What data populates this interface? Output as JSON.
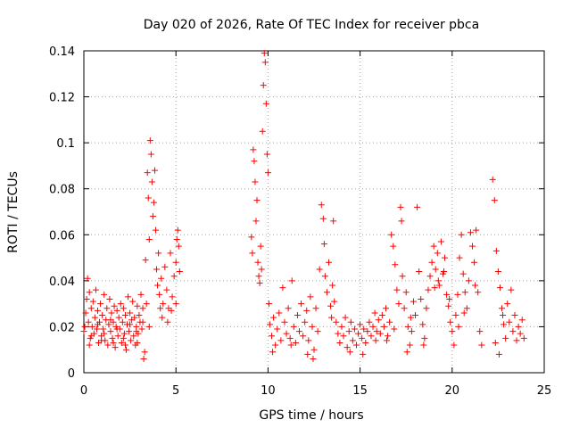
{
  "chart_data": {
    "type": "scatter",
    "title": "Day 020 of 2026, Rate Of TEC Index for receiver pbca",
    "xlabel": "GPS time / hours",
    "ylabel": "ROTI / TECUs",
    "xlim": [
      0,
      25
    ],
    "ylim": [
      0,
      0.14
    ],
    "x_ticks": [
      "0",
      "5",
      "10",
      "15",
      "20",
      "25"
    ],
    "y_ticks": [
      "0",
      "0.02",
      "0.04",
      "0.06",
      "0.08",
      "0.1",
      "0.12",
      "0.14"
    ],
    "x_tick_values": [
      0,
      5,
      10,
      15,
      20,
      25
    ],
    "y_tick_values": [
      0,
      0.02,
      0.04,
      0.06,
      0.08,
      0.1,
      0.12,
      0.14
    ],
    "grid": true,
    "marker": "plus",
    "point_color": "#ff0000",
    "series": [
      {
        "points": [
          [
            0.0,
            0.018
          ],
          [
            0.1,
            0.026
          ],
          [
            0.15,
            0.032
          ],
          [
            0.2,
            0.041
          ],
          [
            0.25,
            0.022
          ],
          [
            0.3,
            0.035
          ],
          [
            0.35,
            0.015
          ],
          [
            0.4,
            0.028
          ],
          [
            0.45,
            0.02
          ],
          [
            0.5,
            0.031
          ],
          [
            0.55,
            0.017
          ],
          [
            0.6,
            0.024
          ],
          [
            0.65,
            0.036
          ],
          [
            0.7,
            0.019
          ],
          [
            0.75,
            0.027
          ],
          [
            0.8,
            0.013
          ],
          [
            0.85,
            0.022
          ],
          [
            0.9,
            0.03
          ],
          [
            0.95,
            0.016
          ],
          [
            1.0,
            0.025
          ],
          [
            1.05,
            0.019
          ],
          [
            1.1,
            0.034
          ],
          [
            1.15,
            0.014
          ],
          [
            1.2,
            0.023
          ],
          [
            1.25,
            0.028
          ],
          [
            1.3,
            0.012
          ],
          [
            1.35,
            0.021
          ],
          [
            1.4,
            0.032
          ],
          [
            1.45,
            0.018
          ],
          [
            1.5,
            0.026
          ],
          [
            1.55,
            0.015
          ],
          [
            1.6,
            0.022
          ],
          [
            1.65,
            0.029
          ],
          [
            1.7,
            0.011
          ],
          [
            1.75,
            0.02
          ],
          [
            1.8,
            0.027
          ],
          [
            1.85,
            0.016
          ],
          [
            1.9,
            0.024
          ],
          [
            1.95,
            0.019
          ],
          [
            2.0,
            0.03
          ],
          [
            2.05,
            0.013
          ],
          [
            2.1,
            0.022
          ],
          [
            2.15,
            0.028
          ],
          [
            2.2,
            0.017
          ],
          [
            2.25,
            0.025
          ],
          [
            2.3,
            0.01
          ],
          [
            2.35,
            0.021
          ],
          [
            2.4,
            0.033
          ],
          [
            2.45,
            0.018
          ],
          [
            2.5,
            0.026
          ],
          [
            2.55,
            0.014
          ],
          [
            2.6,
            0.023
          ],
          [
            2.65,
            0.031
          ],
          [
            2.7,
            0.016
          ],
          [
            2.75,
            0.024
          ],
          [
            2.8,
            0.012
          ],
          [
            2.85,
            0.02
          ],
          [
            2.9,
            0.029
          ],
          [
            2.95,
            0.017
          ],
          [
            3.0,
            0.025
          ],
          [
            3.05,
            0.022
          ],
          [
            3.1,
            0.034
          ],
          [
            3.15,
            0.019
          ],
          [
            3.2,
            0.028
          ],
          [
            3.25,
            0.006
          ],
          [
            3.3,
            0.009
          ],
          [
            3.35,
            0.049
          ],
          [
            3.4,
            0.03
          ],
          [
            3.45,
            0.087
          ],
          [
            3.5,
            0.076
          ],
          [
            3.55,
            0.058
          ],
          [
            3.6,
            0.101
          ],
          [
            3.65,
            0.095
          ],
          [
            3.7,
            0.083
          ],
          [
            3.75,
            0.068
          ],
          [
            3.8,
            0.074
          ],
          [
            3.85,
            0.088
          ],
          [
            3.9,
            0.062
          ],
          [
            3.95,
            0.045
          ],
          [
            4.0,
            0.038
          ],
          [
            4.05,
            0.052
          ],
          [
            4.1,
            0.034
          ],
          [
            4.15,
            0.028
          ],
          [
            4.2,
            0.041
          ],
          [
            4.3,
            0.03
          ],
          [
            4.4,
            0.046
          ],
          [
            4.5,
            0.036
          ],
          [
            4.6,
            0.028
          ],
          [
            4.7,
            0.052
          ],
          [
            4.8,
            0.033
          ],
          [
            4.9,
            0.042
          ],
          [
            5.0,
            0.048
          ],
          [
            5.05,
            0.058
          ],
          [
            5.1,
            0.062
          ],
          [
            5.15,
            0.055
          ],
          [
            5.2,
            0.044
          ],
          [
            0.05,
            0.02
          ],
          [
            0.4,
            0.016
          ],
          [
            0.75,
            0.021
          ],
          [
            1.1,
            0.017
          ],
          [
            1.45,
            0.023
          ],
          [
            1.8,
            0.019
          ],
          [
            2.15,
            0.015
          ],
          [
            2.5,
            0.021
          ],
          [
            2.85,
            0.018
          ],
          [
            3.2,
            0.022
          ],
          [
            0.3,
            0.012
          ],
          [
            0.95,
            0.014
          ],
          [
            1.6,
            0.013
          ],
          [
            2.25,
            0.012
          ],
          [
            2.9,
            0.013
          ],
          [
            3.55,
            0.02
          ],
          [
            4.25,
            0.024
          ],
          [
            4.75,
            0.027
          ],
          [
            5.0,
            0.03
          ],
          [
            4.55,
            0.022
          ],
          [
            9.1,
            0.059
          ],
          [
            9.15,
            0.052
          ],
          [
            9.2,
            0.097
          ],
          [
            9.25,
            0.092
          ],
          [
            9.3,
            0.083
          ],
          [
            9.35,
            0.066
          ],
          [
            9.4,
            0.075
          ],
          [
            9.45,
            0.048
          ],
          [
            9.5,
            0.042
          ],
          [
            9.55,
            0.039
          ],
          [
            9.6,
            0.055
          ],
          [
            9.65,
            0.045
          ],
          [
            9.7,
            0.105
          ],
          [
            9.75,
            0.125
          ],
          [
            9.8,
            0.139
          ],
          [
            9.85,
            0.135
          ],
          [
            9.9,
            0.117
          ],
          [
            9.95,
            0.095
          ],
          [
            10.0,
            0.087
          ],
          [
            10.05,
            0.03
          ],
          [
            10.1,
            0.021
          ],
          [
            10.2,
            0.016
          ],
          [
            10.3,
            0.024
          ],
          [
            10.4,
            0.012
          ],
          [
            10.5,
            0.019
          ],
          [
            10.6,
            0.026
          ],
          [
            10.7,
            0.014
          ],
          [
            10.8,
            0.037
          ],
          [
            10.9,
            0.022
          ],
          [
            11.0,
            0.017
          ],
          [
            11.1,
            0.028
          ],
          [
            11.2,
            0.015
          ],
          [
            11.3,
            0.04
          ],
          [
            11.4,
            0.02
          ],
          [
            11.5,
            0.013
          ],
          [
            11.6,
            0.025
          ],
          [
            11.7,
            0.018
          ],
          [
            11.8,
            0.03
          ],
          [
            11.9,
            0.016
          ],
          [
            12.0,
            0.022
          ],
          [
            12.1,
            0.027
          ],
          [
            12.2,
            0.014
          ],
          [
            12.3,
            0.033
          ],
          [
            12.4,
            0.02
          ],
          [
            12.5,
            0.01
          ],
          [
            12.6,
            0.028
          ],
          [
            12.7,
            0.018
          ],
          [
            12.8,
            0.045
          ],
          [
            12.9,
            0.073
          ],
          [
            13.0,
            0.067
          ],
          [
            13.05,
            0.056
          ],
          [
            13.1,
            0.042
          ],
          [
            13.2,
            0.035
          ],
          [
            13.3,
            0.048
          ],
          [
            13.4,
            0.029
          ],
          [
            13.5,
            0.038
          ],
          [
            13.55,
            0.066
          ],
          [
            13.6,
            0.031
          ],
          [
            13.7,
            0.022
          ],
          [
            13.8,
            0.017
          ],
          [
            13.9,
            0.013
          ],
          [
            14.0,
            0.02
          ],
          [
            14.1,
            0.016
          ],
          [
            14.2,
            0.024
          ],
          [
            14.3,
            0.011
          ],
          [
            14.4,
            0.018
          ],
          [
            14.5,
            0.022
          ],
          [
            14.6,
            0.014
          ],
          [
            14.7,
            0.019
          ],
          [
            14.8,
            0.012
          ],
          [
            14.9,
            0.017
          ],
          [
            15.0,
            0.021
          ],
          [
            15.1,
            0.015
          ],
          [
            15.2,
            0.019
          ],
          [
            15.3,
            0.013
          ],
          [
            15.4,
            0.018
          ],
          [
            15.5,
            0.022
          ],
          [
            15.6,
            0.016
          ],
          [
            15.7,
            0.02
          ],
          [
            15.8,
            0.026
          ],
          [
            15.9,
            0.018
          ],
          [
            16.0,
            0.023
          ],
          [
            16.1,
            0.017
          ],
          [
            16.2,
            0.025
          ],
          [
            16.3,
            0.02
          ],
          [
            16.4,
            0.028
          ],
          [
            16.5,
            0.016
          ],
          [
            16.6,
            0.022
          ],
          [
            16.7,
            0.06
          ],
          [
            16.8,
            0.055
          ],
          [
            16.9,
            0.047
          ],
          [
            17.0,
            0.036
          ],
          [
            17.1,
            0.03
          ],
          [
            17.2,
            0.072
          ],
          [
            17.25,
            0.066
          ],
          [
            17.3,
            0.042
          ],
          [
            17.4,
            0.028
          ],
          [
            17.5,
            0.035
          ],
          [
            17.6,
            0.02
          ],
          [
            17.7,
            0.012
          ],
          [
            17.8,
            0.018
          ],
          [
            17.9,
            0.031
          ],
          [
            18.0,
            0.025
          ],
          [
            18.1,
            0.072
          ],
          [
            18.2,
            0.044
          ],
          [
            18.3,
            0.032
          ],
          [
            18.4,
            0.021
          ],
          [
            18.5,
            0.015
          ],
          [
            18.6,
            0.028
          ],
          [
            18.7,
            0.036
          ],
          [
            18.8,
            0.042
          ],
          [
            18.9,
            0.048
          ],
          [
            19.0,
            0.055
          ],
          [
            19.1,
            0.045
          ],
          [
            19.2,
            0.052
          ],
          [
            19.3,
            0.038
          ],
          [
            19.4,
            0.057
          ],
          [
            19.5,
            0.043
          ],
          [
            19.6,
            0.05
          ],
          [
            19.7,
            0.034
          ],
          [
            19.8,
            0.029
          ],
          [
            19.9,
            0.022
          ],
          [
            20.0,
            0.018
          ],
          [
            20.1,
            0.012
          ],
          [
            20.2,
            0.025
          ],
          [
            20.3,
            0.034
          ],
          [
            20.4,
            0.05
          ],
          [
            20.5,
            0.06
          ],
          [
            20.6,
            0.043
          ],
          [
            20.7,
            0.035
          ],
          [
            20.8,
            0.028
          ],
          [
            20.9,
            0.04
          ],
          [
            21.0,
            0.061
          ],
          [
            21.1,
            0.055
          ],
          [
            21.2,
            0.048
          ],
          [
            21.3,
            0.062
          ],
          [
            21.4,
            0.035
          ],
          [
            21.5,
            0.018
          ],
          [
            21.6,
            0.012
          ],
          [
            22.2,
            0.084
          ],
          [
            22.3,
            0.075
          ],
          [
            22.4,
            0.053
          ],
          [
            22.5,
            0.044
          ],
          [
            22.6,
            0.037
          ],
          [
            22.7,
            0.028
          ],
          [
            22.8,
            0.021
          ],
          [
            22.9,
            0.015
          ],
          [
            23.0,
            0.03
          ],
          [
            23.1,
            0.022
          ],
          [
            23.2,
            0.036
          ],
          [
            23.3,
            0.018
          ],
          [
            23.4,
            0.025
          ],
          [
            23.5,
            0.014
          ],
          [
            23.6,
            0.02
          ],
          [
            23.7,
            0.017
          ],
          [
            23.8,
            0.023
          ],
          [
            23.9,
            0.015
          ],
          [
            22.35,
            0.013
          ],
          [
            22.55,
            0.008
          ],
          [
            22.75,
            0.025
          ],
          [
            10.25,
            0.009
          ],
          [
            11.25,
            0.012
          ],
          [
            12.15,
            0.008
          ],
          [
            12.45,
            0.006
          ],
          [
            13.45,
            0.024
          ],
          [
            14.45,
            0.009
          ],
          [
            15.15,
            0.008
          ],
          [
            16.45,
            0.014
          ],
          [
            17.55,
            0.009
          ],
          [
            18.45,
            0.012
          ],
          [
            19.25,
            0.04
          ],
          [
            19.55,
            0.044
          ],
          [
            19.85,
            0.032
          ],
          [
            20.65,
            0.026
          ],
          [
            21.25,
            0.038
          ],
          [
            20.35,
            0.02
          ],
          [
            19.05,
            0.037
          ],
          [
            17.75,
            0.024
          ],
          [
            16.85,
            0.019
          ],
          [
            15.85,
            0.014
          ]
        ]
      }
    ]
  }
}
